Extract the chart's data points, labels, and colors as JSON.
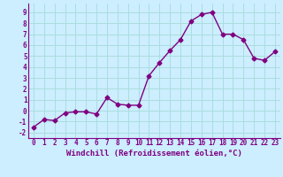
{
  "x": [
    0,
    1,
    2,
    3,
    4,
    5,
    6,
    7,
    8,
    9,
    10,
    11,
    12,
    13,
    14,
    15,
    16,
    17,
    18,
    19,
    20,
    21,
    22,
    23
  ],
  "y": [
    -1.5,
    -0.8,
    -0.9,
    -0.2,
    -0.1,
    -0.1,
    -0.3,
    1.2,
    0.6,
    0.5,
    0.5,
    3.2,
    4.4,
    5.5,
    6.5,
    8.2,
    8.8,
    9.0,
    7.0,
    7.0,
    6.5,
    4.8,
    4.6,
    5.4
  ],
  "line_color": "#800080",
  "marker": "D",
  "marker_size": 2.5,
  "bg_color": "#cceeff",
  "grid_color": "#aadddd",
  "xlabel": "Windchill (Refroidissement éolien,°C)",
  "ylim": [
    -2.5,
    9.8
  ],
  "xlim": [
    -0.5,
    23.5
  ],
  "yticks": [
    -2,
    -1,
    0,
    1,
    2,
    3,
    4,
    5,
    6,
    7,
    8,
    9
  ],
  "xticks": [
    0,
    1,
    2,
    3,
    4,
    5,
    6,
    7,
    8,
    9,
    10,
    11,
    12,
    13,
    14,
    15,
    16,
    17,
    18,
    19,
    20,
    21,
    22,
    23
  ],
  "tick_label_fontsize": 5.5,
  "xlabel_fontsize": 6.5,
  "line_width": 1.0
}
